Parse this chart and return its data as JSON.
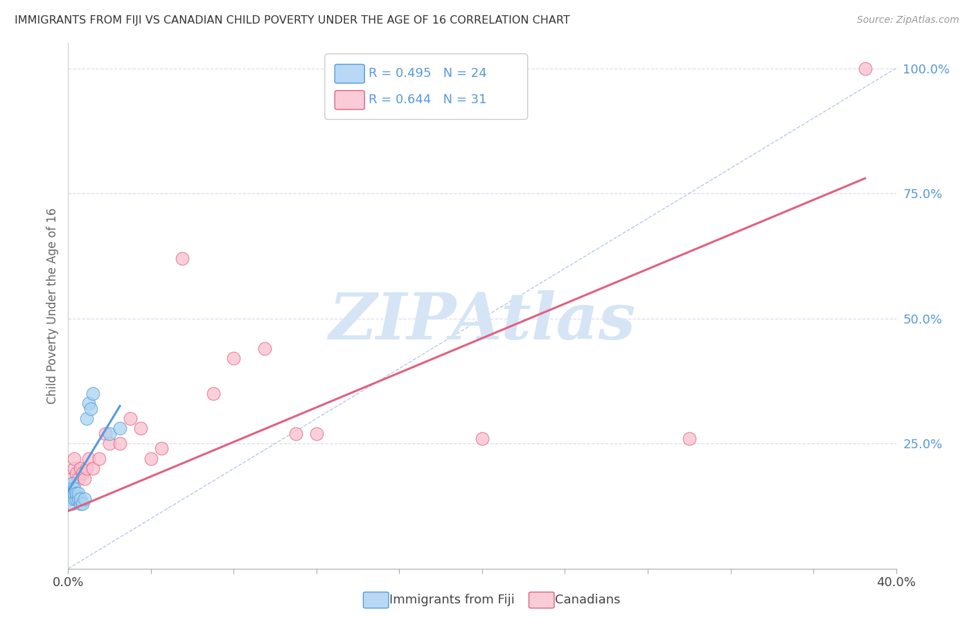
{
  "title": "IMMIGRANTS FROM FIJI VS CANADIAN CHILD POVERTY UNDER THE AGE OF 16 CORRELATION CHART",
  "source": "Source: ZipAtlas.com",
  "ylabel": "Child Poverty Under the Age of 16",
  "xlim": [
    0.0,
    0.4
  ],
  "ylim": [
    0.0,
    1.05
  ],
  "xticks": [
    0.0,
    0.04,
    0.08,
    0.12,
    0.16,
    0.2,
    0.24,
    0.28,
    0.32,
    0.36,
    0.4
  ],
  "ytick_positions": [
    0.25,
    0.5,
    0.75,
    1.0
  ],
  "ytick_labels": [
    "25.0%",
    "50.0%",
    "75.0%",
    "100.0%"
  ],
  "blue_R": 0.495,
  "blue_N": 24,
  "pink_R": 0.644,
  "pink_N": 31,
  "blue_scatter_x": [
    0.001,
    0.001,
    0.001,
    0.002,
    0.002,
    0.002,
    0.002,
    0.003,
    0.003,
    0.003,
    0.004,
    0.004,
    0.005,
    0.005,
    0.006,
    0.006,
    0.007,
    0.008,
    0.009,
    0.01,
    0.011,
    0.012,
    0.02,
    0.025
  ],
  "blue_scatter_y": [
    0.14,
    0.15,
    0.16,
    0.13,
    0.15,
    0.16,
    0.17,
    0.14,
    0.15,
    0.16,
    0.14,
    0.15,
    0.14,
    0.15,
    0.13,
    0.14,
    0.13,
    0.14,
    0.3,
    0.33,
    0.32,
    0.35,
    0.27,
    0.28
  ],
  "pink_scatter_x": [
    0.001,
    0.001,
    0.002,
    0.002,
    0.003,
    0.003,
    0.004,
    0.005,
    0.006,
    0.007,
    0.008,
    0.009,
    0.01,
    0.012,
    0.015,
    0.018,
    0.02,
    0.025,
    0.03,
    0.035,
    0.04,
    0.045,
    0.055,
    0.07,
    0.08,
    0.095,
    0.11,
    0.12,
    0.2,
    0.3,
    0.385
  ],
  "pink_scatter_y": [
    0.15,
    0.16,
    0.17,
    0.18,
    0.2,
    0.22,
    0.19,
    0.18,
    0.2,
    0.19,
    0.18,
    0.2,
    0.22,
    0.2,
    0.22,
    0.27,
    0.25,
    0.25,
    0.3,
    0.28,
    0.22,
    0.24,
    0.62,
    0.35,
    0.42,
    0.44,
    0.27,
    0.27,
    0.26,
    0.26,
    1.0
  ],
  "blue_line_x": [
    0.0,
    0.025
  ],
  "blue_line_y": [
    0.155,
    0.325
  ],
  "pink_line_x": [
    0.0,
    0.385
  ],
  "pink_line_y": [
    0.115,
    0.78
  ],
  "diag_line_x": [
    0.0,
    0.4
  ],
  "diag_line_y": [
    0.0,
    1.0
  ],
  "scatter_color_blue": "#a8d4f0",
  "scatter_color_pink": "#f9c0ce",
  "line_color_blue": "#5599dd",
  "line_color_pink": "#e06080",
  "diag_color": "#b8c8e8",
  "legend_box_color_blue": "#b8d8f5",
  "legend_box_color_pink": "#f9ccd8",
  "watermark": "ZIPAtlas",
  "watermark_color": "#d5e5f5",
  "background_color": "#ffffff",
  "grid_color": "#ddddee",
  "ytick_color": "#5599dd"
}
